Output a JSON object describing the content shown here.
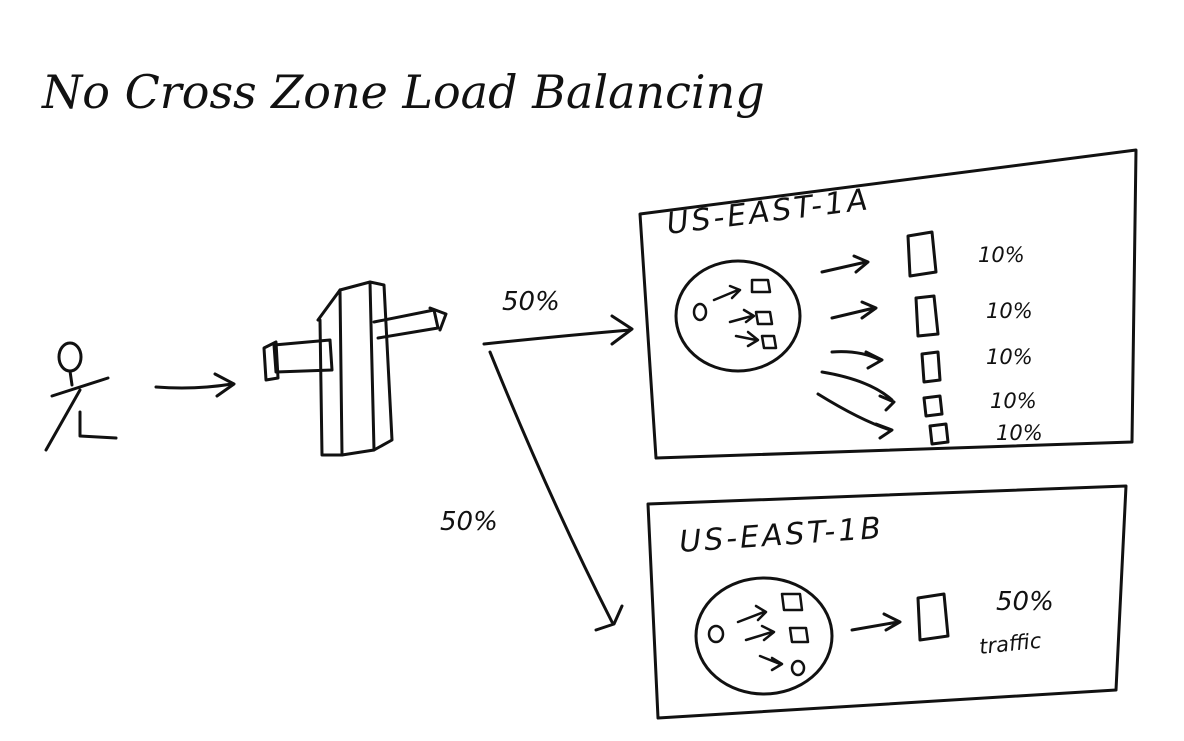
{
  "title": "No Cross Zone Load Balancing",
  "user_icon": "stick-figure-user-icon",
  "load_balancer_icon": "load-balancer-icon",
  "ink_color": "#111111",
  "splits": {
    "to_zone_a": "50%",
    "to_zone_b": "50%"
  },
  "zones": [
    {
      "name": "US-EAST-1A",
      "instance_traffic": [
        "10%",
        "10%",
        "10%",
        "10%",
        "10%"
      ]
    },
    {
      "name": "US-EAST-1B",
      "instance_traffic": [
        "50%"
      ],
      "instance_traffic_note": "traffic"
    }
  ]
}
